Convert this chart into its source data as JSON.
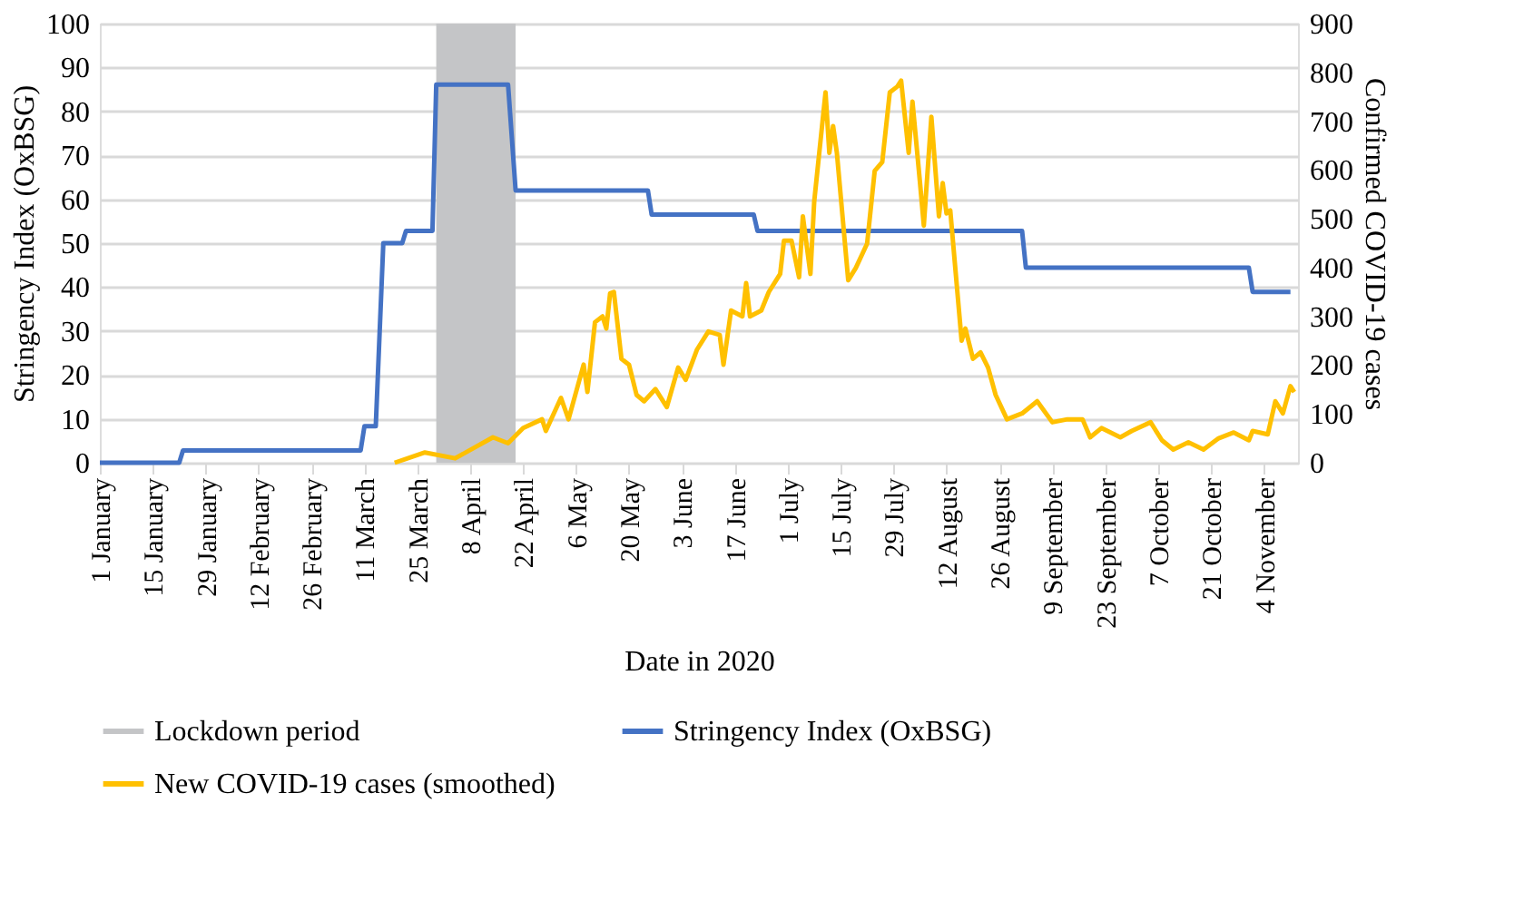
{
  "chart_data": {
    "type": "line",
    "xlabel": "Date in 2020",
    "ylabel": "Stringency Index (OxBSG)",
    "y2label": "Confirmed COVID-19 cases",
    "xlim": [
      "2020-01-01",
      "2020-11-13"
    ],
    "xticks": [
      {
        "value": "2020-01-01",
        "label": "1 January"
      },
      {
        "value": "2020-01-15",
        "label": "15 January"
      },
      {
        "value": "2020-01-29",
        "label": "29 January"
      },
      {
        "value": "2020-02-12",
        "label": "12 February"
      },
      {
        "value": "2020-02-26",
        "label": "26 February"
      },
      {
        "value": "2020-03-11",
        "label": "11 March"
      },
      {
        "value": "2020-03-25",
        "label": "25 March"
      },
      {
        "value": "2020-04-08",
        "label": "8 April"
      },
      {
        "value": "2020-04-22",
        "label": "22 April"
      },
      {
        "value": "2020-05-06",
        "label": "6 May"
      },
      {
        "value": "2020-05-20",
        "label": "20 May"
      },
      {
        "value": "2020-06-03",
        "label": "3 June"
      },
      {
        "value": "2020-06-17",
        "label": "17 June"
      },
      {
        "value": "2020-07-01",
        "label": "1 July"
      },
      {
        "value": "2020-07-15",
        "label": "15 July"
      },
      {
        "value": "2020-07-29",
        "label": "29 July"
      },
      {
        "value": "2020-08-12",
        "label": "12 August"
      },
      {
        "value": "2020-08-26",
        "label": "26 August"
      },
      {
        "value": "2020-09-09",
        "label": "9 September"
      },
      {
        "value": "2020-09-23",
        "label": "23 September"
      },
      {
        "value": "2020-10-07",
        "label": "7 October"
      },
      {
        "value": "2020-10-21",
        "label": "21 October"
      },
      {
        "value": "2020-11-04",
        "label": "4 November"
      }
    ],
    "ylim": [
      0,
      100
    ],
    "yticks": [
      0,
      10,
      20,
      30,
      40,
      50,
      60,
      70,
      80,
      90,
      100
    ],
    "y2lim": [
      0,
      900
    ],
    "y2ticks": [
      0,
      100,
      200,
      300,
      400,
      500,
      600,
      700,
      800,
      900
    ],
    "grid": "y",
    "legend": "bottom",
    "marker": "none",
    "line_style": "solid",
    "bands": [
      {
        "axis": "x",
        "from": "2020-03-30",
        "to": "2020-04-20",
        "label": "Lockdown period",
        "color": "#c4c5c7"
      }
    ],
    "series": [
      {
        "name": "Stringency Index (OxBSG)",
        "color": "#4472c4",
        "x": [
          "2020-01-01",
          "2020-01-22",
          "2020-01-23",
          "2020-03-10",
          "2020-03-11",
          "2020-03-14",
          "2020-03-16",
          "2020-03-21",
          "2020-03-22",
          "2020-03-29",
          "2020-03-30",
          "2020-04-18",
          "2020-04-20",
          "2020-05-25",
          "2020-05-26",
          "2020-06-22",
          "2020-06-23",
          "2020-09-01",
          "2020-09-02",
          "2020-10-31",
          "2020-11-01",
          "2020-11-11"
        ],
        "values": [
          0,
          0,
          2.8,
          2.8,
          8.3,
          8.3,
          50,
          50,
          52.8,
          52.8,
          86.1,
          86.1,
          62,
          62,
          56.5,
          56.5,
          52.8,
          52.8,
          44.4,
          44.4,
          38.9,
          38.9
        ]
      },
      {
        "name": "New COVID-19 cases (smoothed)",
        "color": "#ffc000",
        "axis": "y2",
        "x": [
          "2020-03-19",
          "2020-03-27",
          "2020-04-04",
          "2020-04-14",
          "2020-04-18",
          "2020-04-22",
          "2020-04-27",
          "2020-04-28",
          "2020-05-02",
          "2020-05-04",
          "2020-05-08",
          "2020-05-09",
          "2020-05-11",
          "2020-05-13",
          "2020-05-14",
          "2020-05-15",
          "2020-05-16",
          "2020-05-18",
          "2020-05-20",
          "2020-05-22",
          "2020-05-24",
          "2020-05-27",
          "2020-05-30",
          "2020-06-02",
          "2020-06-04",
          "2020-06-07",
          "2020-06-10",
          "2020-06-13",
          "2020-06-14",
          "2020-06-16",
          "2020-06-19",
          "2020-06-20",
          "2020-06-21",
          "2020-06-24",
          "2020-06-26",
          "2020-06-29",
          "2020-06-30",
          "2020-07-02",
          "2020-07-04",
          "2020-07-05",
          "2020-07-07",
          "2020-07-08",
          "2020-07-11",
          "2020-07-12",
          "2020-07-13",
          "2020-07-14",
          "2020-07-17",
          "2020-07-19",
          "2020-07-22",
          "2020-07-24",
          "2020-07-26",
          "2020-07-28",
          "2020-07-30",
          "2020-07-31",
          "2020-08-02",
          "2020-08-03",
          "2020-08-05",
          "2020-08-06",
          "2020-08-08",
          "2020-08-10",
          "2020-08-11",
          "2020-08-12",
          "2020-08-13",
          "2020-08-16",
          "2020-08-17",
          "2020-08-19",
          "2020-08-21",
          "2020-08-23",
          "2020-08-25",
          "2020-08-28",
          "2020-09-01",
          "2020-09-05",
          "2020-09-09",
          "2020-09-13",
          "2020-09-17",
          "2020-09-19",
          "2020-09-22",
          "2020-09-27",
          "2020-09-30",
          "2020-10-05",
          "2020-10-08",
          "2020-10-11",
          "2020-10-15",
          "2020-10-19",
          "2020-10-23",
          "2020-10-27",
          "2020-10-31",
          "2020-11-01",
          "2020-11-05",
          "2020-11-07",
          "2020-11-09",
          "2020-11-11",
          "2020-11-12"
        ],
        "values": [
          0,
          21,
          9,
          52,
          40,
          71,
          89,
          65,
          133,
          89,
          201,
          145,
          288,
          300,
          275,
          347,
          350,
          213,
          201,
          139,
          126,
          151,
          114,
          195,
          170,
          232,
          269,
          262,
          201,
          312,
          300,
          368,
          300,
          312,
          350,
          387,
          455,
          455,
          380,
          505,
          387,
          535,
          759,
          635,
          690,
          635,
          374,
          399,
          449,
          598,
          616,
          759,
          771,
          783,
          635,
          740,
          573,
          486,
          709,
          505,
          573,
          511,
          517,
          250,
          275,
          213,
          226,
          195,
          139,
          89,
          101,
          126,
          83,
          89,
          89,
          52,
          71,
          52,
          65,
          83,
          46,
          27,
          42,
          27,
          50,
          62,
          46,
          65,
          58,
          126,
          101,
          157,
          145
        ]
      }
    ]
  }
}
